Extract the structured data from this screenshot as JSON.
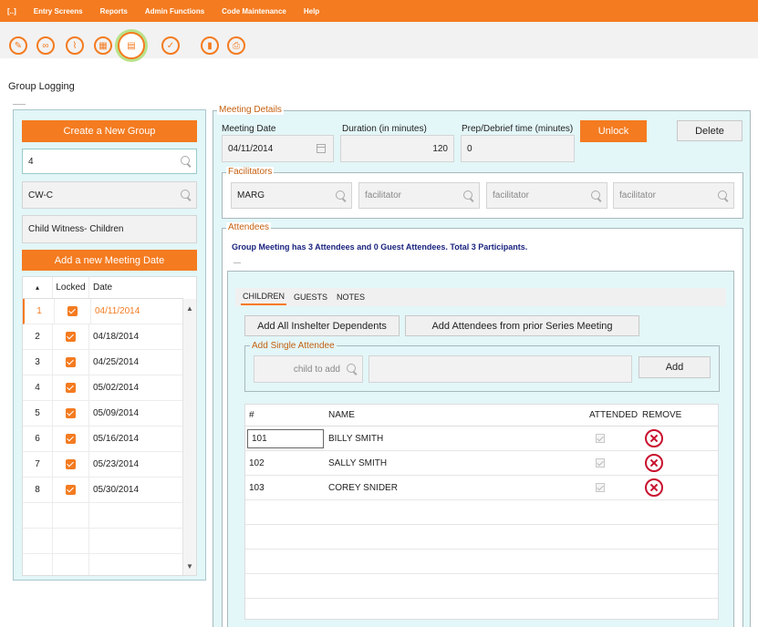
{
  "menu": {
    "items": [
      "[..]",
      "Entry Screens",
      "Reports",
      "Admin Functions",
      "Code Maintenance",
      "Help"
    ]
  },
  "toolbar": {
    "icons": [
      "edit-icon",
      "link-icon",
      "attach-icon",
      "calendar-icon",
      "clipboard-icon",
      "check-icon",
      "document-icon",
      "print-icon"
    ]
  },
  "page": {
    "title": "Group Logging"
  },
  "left": {
    "create_group_label": "Create a New Group",
    "search_value": "4",
    "group_code": "CW-C",
    "group_name": "Child Witness- Children",
    "add_meeting_label": "Add a new Meeting Date",
    "table": {
      "headers": {
        "sort": "▴",
        "locked": "Locked",
        "date": "Date"
      },
      "rows": [
        {
          "num": "1",
          "date": "04/11/2014"
        },
        {
          "num": "2",
          "date": "04/18/2014"
        },
        {
          "num": "3",
          "date": "04/25/2014"
        },
        {
          "num": "4",
          "date": "05/02/2014"
        },
        {
          "num": "5",
          "date": "05/09/2014"
        },
        {
          "num": "6",
          "date": "05/16/2014"
        },
        {
          "num": "7",
          "date": "05/23/2014"
        },
        {
          "num": "8",
          "date": "05/30/2014"
        }
      ]
    }
  },
  "meeting": {
    "section_label": "Meeting Details",
    "date_label": "Meeting Date",
    "date_value": "04/11/2014",
    "duration_label": "Duration (in minutes)",
    "duration_value": "120",
    "prep_label": "Prep/Debrief time (minutes)",
    "prep_value": "0",
    "unlock_label": "Unlock",
    "delete_label": "Delete"
  },
  "facilitators": {
    "section_label": "Facilitators",
    "first_value": "MARG",
    "placeholder": "facilitator"
  },
  "attendees": {
    "section_label": "Attendees",
    "summary": "Group Meeting has 3 Attendees and 0 Guest Attendees.  Total 3 Participants.",
    "tabs": [
      "CHILDREN",
      "GUESTS",
      "NOTES"
    ],
    "add_inshelter_label": "Add All Inshelter Dependents",
    "add_prior_label": "Add Attendees from prior Series Meeting",
    "single_label": "Add Single Attendee",
    "child_placeholder": "child to add",
    "add_label": "Add",
    "table": {
      "headers": {
        "num": "#",
        "name": "NAME",
        "attended": "ATTENDED",
        "remove": "REMOVE"
      },
      "rows": [
        {
          "num": "101",
          "name": "BILLY SMITH"
        },
        {
          "num": "102",
          "name": "SALLY SMITH"
        },
        {
          "num": "103",
          "name": "COREY SNIDER"
        }
      ]
    }
  },
  "colors": {
    "accent": "#f47b20",
    "panel": "#e3f6f8",
    "remove": "#c8102e",
    "summary": "#1a237e"
  }
}
